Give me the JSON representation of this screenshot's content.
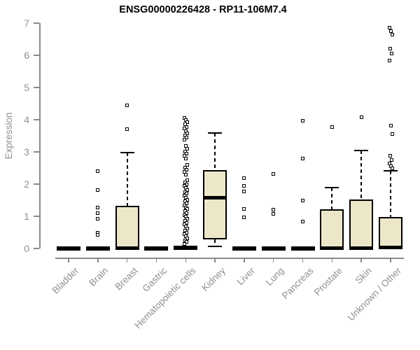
{
  "chart_data": {
    "type": "boxplot",
    "title": "ENSG00000226428 - RP11-106M7.4",
    "ylabel": "Expression",
    "xlabel": "",
    "ylim": [
      0,
      7
    ],
    "yticks": [
      0,
      1,
      2,
      3,
      4,
      5,
      6,
      7
    ],
    "grid": false,
    "legend": "none",
    "colors": {
      "box_fill": "#EDE7C9",
      "box_border": "#000000",
      "median": "#000000",
      "whisker": "#000000",
      "outlier_fill": "#ffffff",
      "axis": "#8a8a8a",
      "tick_label": "#909090",
      "title": "#000000",
      "background": "#ffffff"
    },
    "categories": [
      "Bladder",
      "Brain",
      "Breast",
      "Gastric",
      "Hematopoietic cells",
      "Kidney",
      "Liver",
      "Lung",
      "Pancreas",
      "Prostate",
      "Skin",
      "Unknown / Other"
    ],
    "boxes": [
      {
        "category": "Bladder",
        "q1": 0,
        "median": 0,
        "q3": 0,
        "whisker_low": 0,
        "whisker_high": 0,
        "outliers": []
      },
      {
        "category": "Brain",
        "q1": 0,
        "median": 0,
        "q3": 0,
        "whisker_low": 0,
        "whisker_high": 0,
        "outliers": [
          2.4,
          1.82,
          1.27,
          1.1,
          0.92,
          0.48,
          0.43
        ]
      },
      {
        "category": "Breast",
        "q1": 0,
        "median": 0.02,
        "q3": 1.33,
        "whisker_low": 0,
        "whisker_high": 2.98,
        "outliers": [
          4.45,
          3.7
        ]
      },
      {
        "category": "Gastric",
        "q1": 0,
        "median": 0,
        "q3": 0,
        "whisker_low": 0,
        "whisker_high": 0,
        "outliers": []
      },
      {
        "category": "Hematopoietic cells",
        "q1": 0,
        "median": 0.02,
        "q3": 0,
        "whisker_low": 0,
        "whisker_high": 0,
        "outliers": [
          4.05,
          3.98,
          3.92,
          3.85,
          3.78,
          3.72,
          3.65,
          3.58,
          3.52,
          3.45,
          3.38,
          3.18,
          3.1,
          3.02,
          2.95,
          2.88,
          2.8,
          2.6,
          2.52,
          2.45,
          2.38,
          2.3,
          2.12,
          2.06,
          2.0,
          1.94,
          1.88,
          1.82,
          1.76,
          1.7,
          1.64,
          1.58,
          1.52,
          1.46,
          1.4,
          1.34,
          1.28,
          1.22,
          1.16,
          1.1,
          1.04,
          0.98,
          0.92,
          0.86,
          0.8,
          0.74,
          0.68,
          0.62,
          0.56,
          0.5,
          0.44,
          0.38,
          0.32,
          0.26,
          0.2,
          0.15
        ]
      },
      {
        "category": "Kidney",
        "q1": 0.28,
        "median": 1.58,
        "q3": 2.44,
        "whisker_low": 0.06,
        "whisker_high": 3.58,
        "outliers": []
      },
      {
        "category": "Liver",
        "q1": 0,
        "median": 0,
        "q3": 0,
        "whisker_low": 0,
        "whisker_high": 0,
        "outliers": [
          2.18,
          1.94,
          1.78,
          1.22,
          0.96
        ]
      },
      {
        "category": "Lung",
        "q1": 0,
        "median": 0,
        "q3": 0,
        "whisker_low": 0,
        "whisker_high": 0,
        "outliers": [
          2.32,
          1.2,
          1.08
        ]
      },
      {
        "category": "Pancreas",
        "q1": 0,
        "median": 0,
        "q3": 0,
        "whisker_low": 0,
        "whisker_high": 0,
        "outliers": [
          3.96,
          2.79,
          1.5,
          0.83
        ]
      },
      {
        "category": "Prostate",
        "q1": 0,
        "median": 0.02,
        "q3": 1.21,
        "whisker_low": 0,
        "whisker_high": 1.9,
        "outliers": [
          3.77
        ]
      },
      {
        "category": "Skin",
        "q1": 0,
        "median": 0.02,
        "q3": 1.53,
        "whisker_low": 0,
        "whisker_high": 3.05,
        "outliers": [
          4.08
        ]
      },
      {
        "category": "Unknown / Other",
        "q1": 0,
        "median": 0.03,
        "q3": 0.98,
        "whisker_low": 0,
        "whisker_high": 2.41,
        "outliers": [
          6.85,
          6.75,
          6.65,
          6.2,
          6.05,
          5.83,
          3.81,
          3.55,
          2.88,
          2.75,
          2.65,
          2.55,
          2.48
        ]
      }
    ]
  }
}
